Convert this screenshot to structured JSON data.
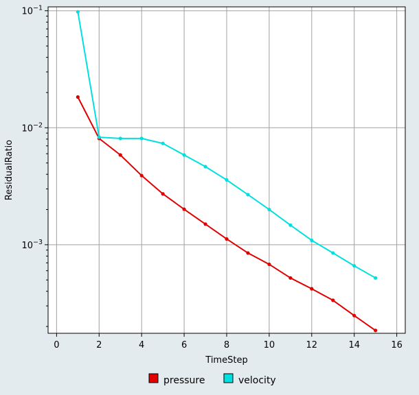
{
  "chart_data": {
    "type": "line",
    "xlabel": "TimeStep",
    "ylabel": "ResidualRatio",
    "xlim": [
      -0.4,
      16.4
    ],
    "ylim": [
      0.000175,
      0.108
    ],
    "yscale": "log",
    "x_ticks": [
      0,
      2,
      4,
      6,
      8,
      10,
      12,
      14,
      16
    ],
    "x_tick_labels": [
      "0",
      "2",
      "4",
      "6",
      "8",
      "10",
      "12",
      "14",
      "16"
    ],
    "y_major_ticks": [
      0.001,
      0.01,
      0.1
    ],
    "y_tick_labels": [
      {
        "base": "10",
        "exp": "−3"
      },
      {
        "base": "10",
        "exp": "−2"
      },
      {
        "base": "10",
        "exp": "−1"
      }
    ],
    "grid": true,
    "legend_position": "bottom-center",
    "x": [
      1,
      2,
      3,
      4,
      5,
      6,
      7,
      8,
      9,
      10,
      11,
      12,
      13,
      14,
      15
    ],
    "series": [
      {
        "name": "pressure",
        "color": "#e00000",
        "values": [
          0.0183,
          0.0081,
          0.00585,
          0.0039,
          0.00272,
          0.00201,
          0.0015,
          0.00112,
          0.00085,
          0.00068,
          0.00052,
          0.00042,
          0.000335,
          0.000248,
          0.000185
        ]
      },
      {
        "name": "velocity",
        "color": "#00e0e0",
        "values": [
          0.098,
          0.0083,
          0.0081,
          0.0081,
          0.00735,
          0.00585,
          0.00465,
          0.00358,
          0.00268,
          0.002,
          0.00147,
          0.00109,
          0.00085,
          0.00066,
          0.00052
        ]
      }
    ]
  }
}
